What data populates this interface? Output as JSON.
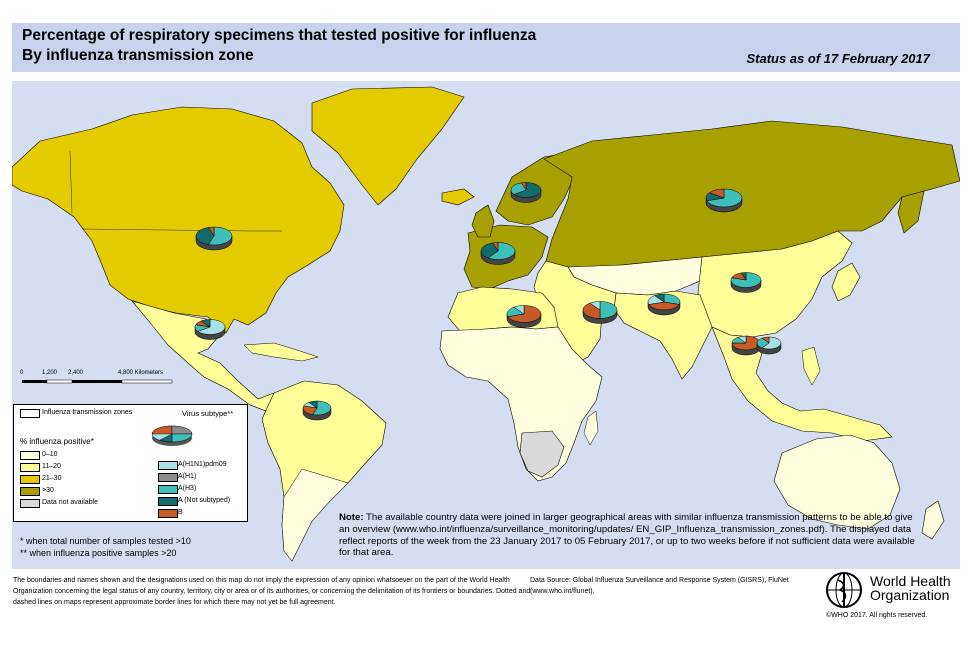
{
  "header": {
    "title_line1": "Percentage of respiratory specimens that tested positive for influenza",
    "title_line2": "By influenza transmission zone",
    "status": "Status as of 17 February 2017"
  },
  "scale": {
    "labels": [
      "0",
      "1,200",
      "2,400",
      "4,800 Kilometers"
    ]
  },
  "legend": {
    "zones_label": "Influenza transmission zones",
    "virus_subtype_label": "Virus subtype**",
    "percent_title": "% influenza positive*",
    "percent_classes": [
      {
        "label": "0–10",
        "color": "#ffffe0"
      },
      {
        "label": "11–20",
        "color": "#ffff99"
      },
      {
        "label": "21–30",
        "color": "#e3cb00"
      },
      {
        "label": ">30",
        "color": "#a6a100"
      },
      {
        "label": "Data not available",
        "color": "#d9d9d9"
      }
    ],
    "subtypes": [
      {
        "label": "A(H1N1)pdm09",
        "color": "#a8e0e8"
      },
      {
        "label": "A(H1)",
        "color": "#8c8c8c"
      },
      {
        "label": "A(H3)",
        "color": "#3fbfb8"
      },
      {
        "label": "A (Not subtyped)",
        "color": "#136b6b"
      },
      {
        "label": "B",
        "color": "#c65a28"
      }
    ]
  },
  "footnotes": {
    "single": "*  when total number of samples tested >10",
    "double": "** when influenza positive samples >20"
  },
  "note": {
    "bold": "Note:",
    "text": " The available country data were joined in larger geographical areas with similar influenza transmission patterns to be able to give an overview (www.who.int/influenza/surveillance_monitoring/updates/ EN_GIP_Influenza_transmission_zones.pdf). The displayed data reflect reports of the week from the 23 January 2017 to 05 February 2017, or up to two weeks before if not sufficient data were available for that area."
  },
  "disclaimer": "The boundaries and names shown and the designations used on this map do not imply the expression of any opinion whatsoever on the part of the World Health Organization concerning the legal status of any country, territory, city or area or of its authorities, or concerning the delimitation of its frontiers or boundaries. Dotted and dashed lines on maps represent approximate border lines for which there may not yet be full agreement.",
  "datasource": "Data Source: Global Influenza Surveillance and Response System (GISRS), FluNet (www.who.int/flunet),",
  "who": {
    "line1": "World Health",
    "line2": "Organization",
    "copyright": "©WHO 2017. All rights reserved."
  },
  "colors": {
    "ocean": "#d5def0",
    "header_bg": "#c8d2ea",
    "cls_0_10": "#ffffe0",
    "cls_11_20": "#ffff99",
    "cls_21_30": "#e3cb00",
    "cls_gt30": "#a6a100",
    "cls_na": "#d9d9d9"
  },
  "pies": [
    {
      "zone": "North America",
      "shares": [
        {
          "type": "A(H3)",
          "pct": 55
        },
        {
          "type": "A (Not subtyped)",
          "pct": 40
        },
        {
          "type": "B",
          "pct": 5
        }
      ]
    },
    {
      "zone": "Central America",
      "shares": [
        {
          "type": "A(H1N1)pdm09",
          "pct": 65
        },
        {
          "type": "A(H3)",
          "pct": 15
        },
        {
          "type": "B",
          "pct": 10
        },
        {
          "type": "A (Not subtyped)",
          "pct": 10
        }
      ]
    },
    {
      "zone": "South America",
      "shares": [
        {
          "type": "A(H3)",
          "pct": 55
        },
        {
          "type": "B",
          "pct": 25
        },
        {
          "type": "A(H1N1)pdm09",
          "pct": 10
        },
        {
          "type": "A (Not subtyped)",
          "pct": 10
        }
      ]
    },
    {
      "zone": "Northern Europe",
      "shares": [
        {
          "type": "A (Not subtyped)",
          "pct": 65
        },
        {
          "type": "A(H3)",
          "pct": 30
        },
        {
          "type": "B",
          "pct": 5
        }
      ]
    },
    {
      "zone": "South West Europe",
      "shares": [
        {
          "type": "A(H3)",
          "pct": 60
        },
        {
          "type": "A (Not subtyped)",
          "pct": 35
        },
        {
          "type": "B",
          "pct": 5
        }
      ]
    },
    {
      "zone": "Eastern Europe",
      "shares": [
        {
          "type": "A(H3)",
          "pct": 70
        },
        {
          "type": "A (Not subtyped)",
          "pct": 15
        },
        {
          "type": "B",
          "pct": 15
        }
      ]
    },
    {
      "zone": "Northern Africa",
      "shares": [
        {
          "type": "B",
          "pct": 70
        },
        {
          "type": "A(H3)",
          "pct": 20
        },
        {
          "type": "A(H1N1)pdm09",
          "pct": 10
        }
      ]
    },
    {
      "zone": "Western Asia",
      "shares": [
        {
          "type": "A(H3)",
          "pct": 50
        },
        {
          "type": "B",
          "pct": 40
        },
        {
          "type": "A(H1N1)pdm09",
          "pct": 10
        }
      ]
    },
    {
      "zone": "Southern Asia",
      "shares": [
        {
          "type": "A(H3)",
          "pct": 30
        },
        {
          "type": "B",
          "pct": 40
        },
        {
          "type": "A(H1N1)pdm09",
          "pct": 20
        },
        {
          "type": "A (Not subtyped)",
          "pct": 10
        }
      ]
    },
    {
      "zone": "Eastern Asia",
      "shares": [
        {
          "type": "A(H3)",
          "pct": 80
        },
        {
          "type": "B",
          "pct": 15
        },
        {
          "type": "A (Not subtyped)",
          "pct": 5
        }
      ]
    },
    {
      "zone": "South East Asia",
      "shares": [
        {
          "type": "B",
          "pct": 75
        },
        {
          "type": "A(H3)",
          "pct": 15
        },
        {
          "type": "A(H1N1)pdm09",
          "pct": 10
        }
      ]
    },
    {
      "zone": "South East Asia 2",
      "shares": [
        {
          "type": "A(H1N1)pdm09",
          "pct": 60
        },
        {
          "type": "A(H3)",
          "pct": 30
        },
        {
          "type": "B",
          "pct": 10
        }
      ]
    }
  ]
}
